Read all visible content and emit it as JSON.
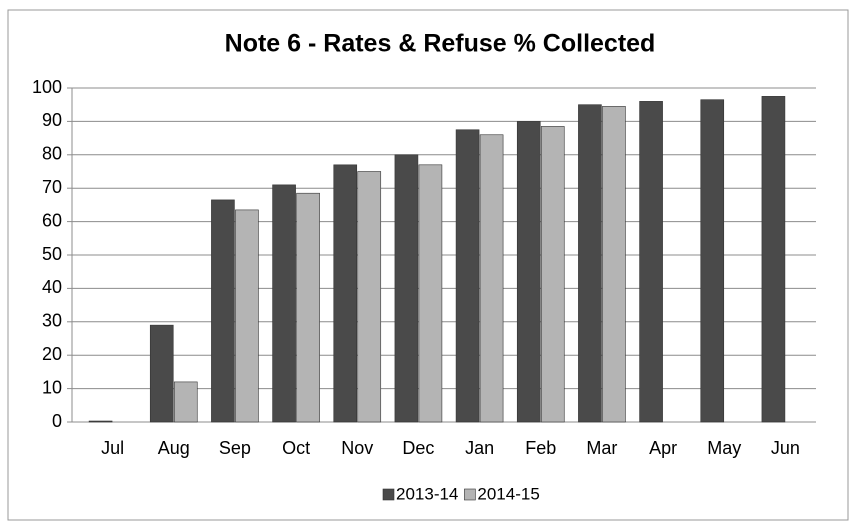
{
  "chart_data": {
    "type": "bar",
    "title": "Note 6 - Rates & Refuse % Collected",
    "categories": [
      "Jul",
      "Aug",
      "Sep",
      "Oct",
      "Nov",
      "Dec",
      "Jan",
      "Feb",
      "Mar",
      "Apr",
      "May",
      "Jun"
    ],
    "series": [
      {
        "name": "2013-14",
        "color": "#4a4a4a",
        "values": [
          0.3,
          29,
          66.5,
          71,
          77,
          80,
          87.5,
          90,
          95,
          96,
          96.5,
          97.5
        ]
      },
      {
        "name": "2014-15",
        "color": "#b4b4b4",
        "values": [
          0,
          12,
          63.5,
          68.5,
          75,
          77,
          86,
          88.5,
          94.5,
          null,
          null,
          null
        ]
      }
    ],
    "ylim": [
      0,
      100
    ],
    "yticks": [
      0,
      10,
      20,
      30,
      40,
      50,
      60,
      70,
      80,
      90,
      100
    ],
    "grid": true,
    "legend": "bottom"
  }
}
